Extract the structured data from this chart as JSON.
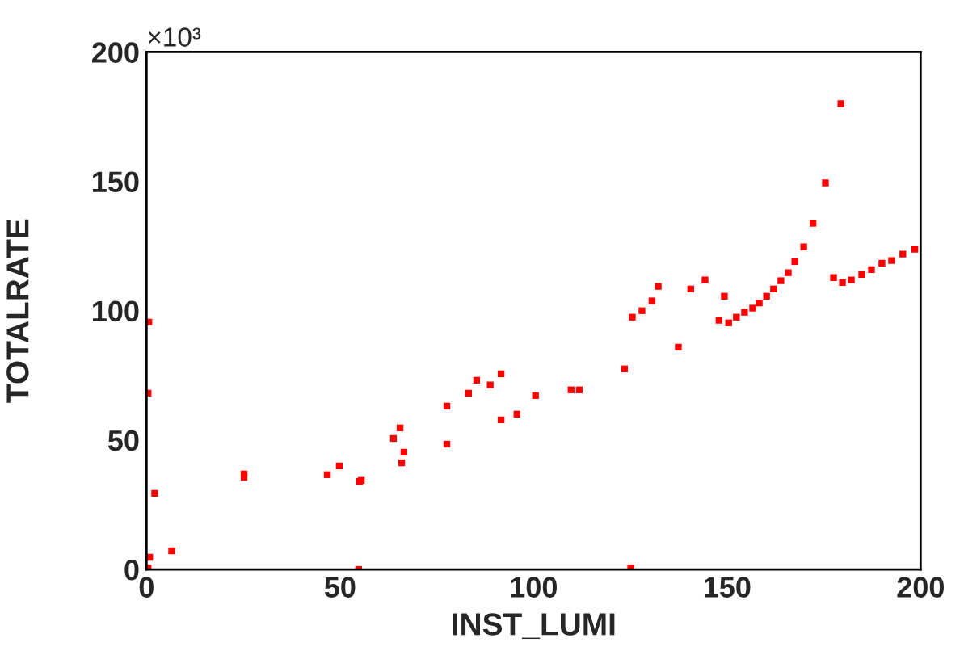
{
  "chart_data": {
    "type": "scatter",
    "xlabel": "INST_LUMI",
    "ylabel": "TOTALRATE",
    "annotations": [
      "×10³"
    ],
    "xlim": [
      0,
      200
    ],
    "ylim": [
      0,
      200
    ],
    "xticks": [
      0,
      50,
      100,
      150,
      200
    ],
    "yticks": [
      0,
      50,
      100,
      150,
      200
    ],
    "grid": false,
    "legend": false,
    "marker": "square",
    "series": [
      {
        "color": "#ff0000",
        "x": [
          0.6,
          0.4,
          2.1,
          25.2,
          25.2,
          6.5,
          0.8,
          0.4,
          54.8,
          125.1,
          46.7,
          49.8,
          63.8,
          77.6,
          88.8,
          91.6,
          85.3,
          65.5,
          83.2,
          55.0,
          55.5,
          65.9,
          66.5,
          77.6,
          91.6,
          100.5,
          111.8,
          95.7,
          109.7,
          123.5,
          137.4,
          147.9,
          125.5,
          128.0,
          130.6,
          132.2,
          140.6,
          144.3,
          149.3,
          150.4,
          152.4,
          154.5,
          156.6,
          158.3,
          160.2,
          162.0,
          163.9,
          165.8,
          167.5,
          169.8,
          172.2,
          175.4,
          179.4,
          177.5,
          179.8,
          182.1,
          184.8,
          187.3,
          190.0,
          192.5,
          195.4,
          198.5
        ],
        "values": [
          95.6,
          68.1,
          29.4,
          36.9,
          35.6,
          7.2,
          4.7,
          0.6,
          0,
          0.6,
          36.6,
          40.0,
          50.6,
          63.1,
          71.3,
          75.6,
          73.1,
          54.7,
          68.1,
          34.0,
          34.4,
          41.2,
          45.3,
          48.4,
          57.8,
          67.2,
          69.4,
          60.0,
          69.4,
          77.5,
          85.9,
          96.3,
          97.5,
          100.0,
          103.8,
          109.4,
          108.4,
          111.9,
          105.6,
          95.3,
          97.5,
          99.4,
          101.0,
          103.0,
          105.6,
          108.4,
          111.6,
          114.7,
          119.0,
          124.7,
          133.8,
          149.4,
          180.0,
          112.8,
          110.9,
          111.9,
          114.0,
          115.9,
          118.4,
          119.4,
          121.9,
          123.8
        ]
      }
    ]
  }
}
